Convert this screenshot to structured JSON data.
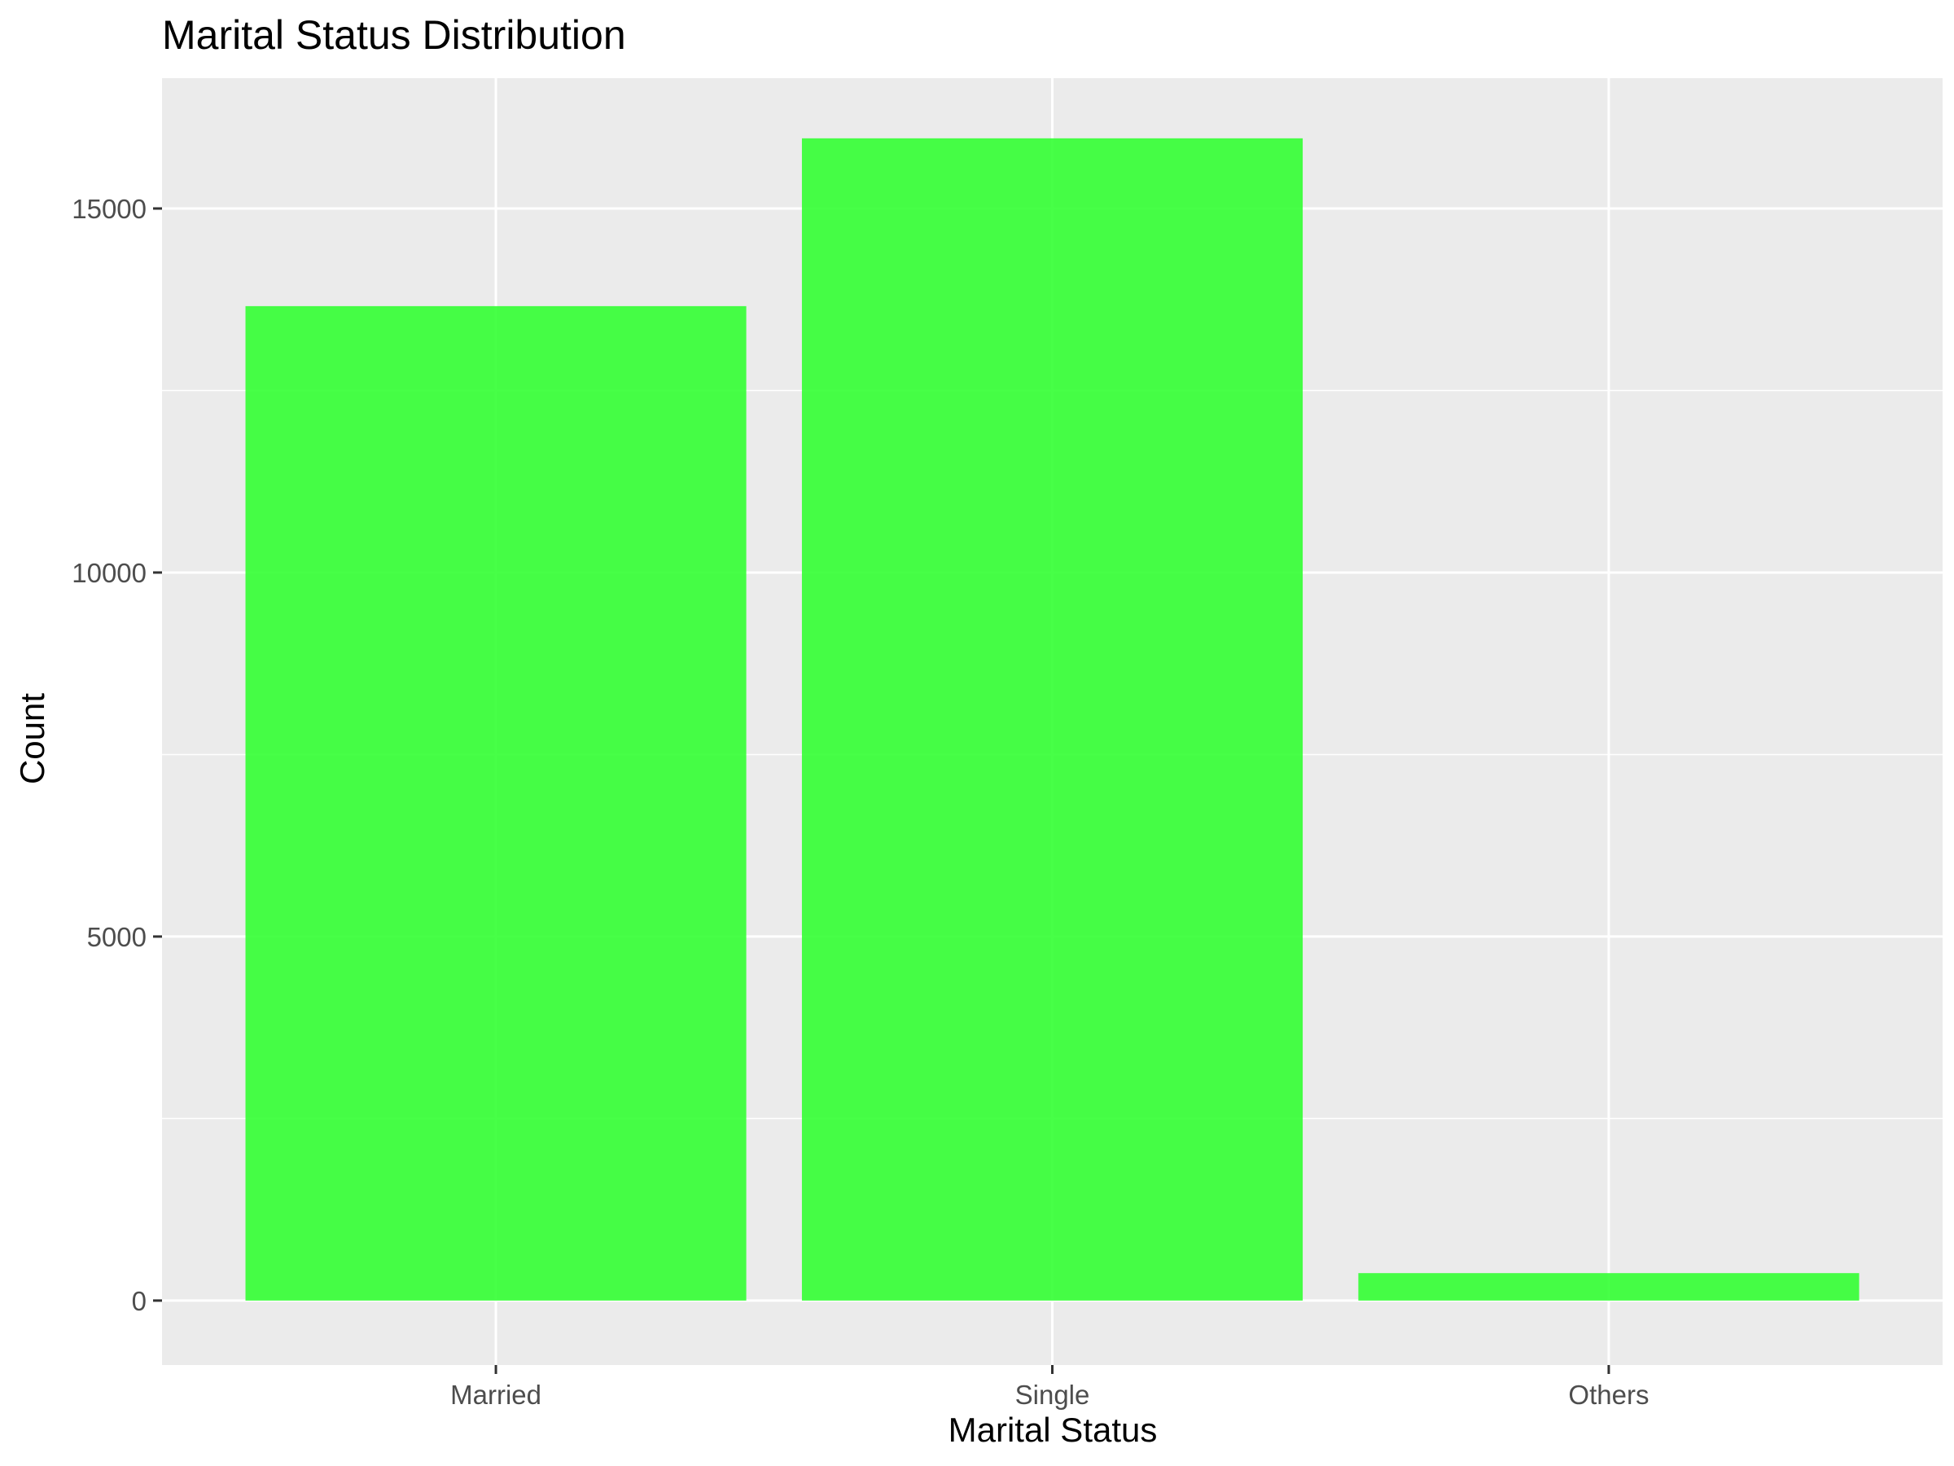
{
  "chart_data": {
    "type": "bar",
    "title": "Marital Status Distribution",
    "xlabel": "Marital Status",
    "ylabel": "Count",
    "categories": [
      "Married",
      "Single",
      "Others"
    ],
    "values": [
      13659,
      15964,
      377
    ],
    "ylim": [
      -885,
      16790
    ],
    "yticks": [
      0,
      5000,
      10000,
      15000
    ],
    "ytick_labels": [
      "0",
      "5000",
      "10000",
      "15000"
    ],
    "grid": true,
    "legend": "none",
    "colors": {
      "bar": "#33ff33",
      "panel": "#ebebeb",
      "grid": "#ffffff",
      "tick": "#333333",
      "tick_label": "#4d4d4d",
      "text": "#000000"
    }
  }
}
